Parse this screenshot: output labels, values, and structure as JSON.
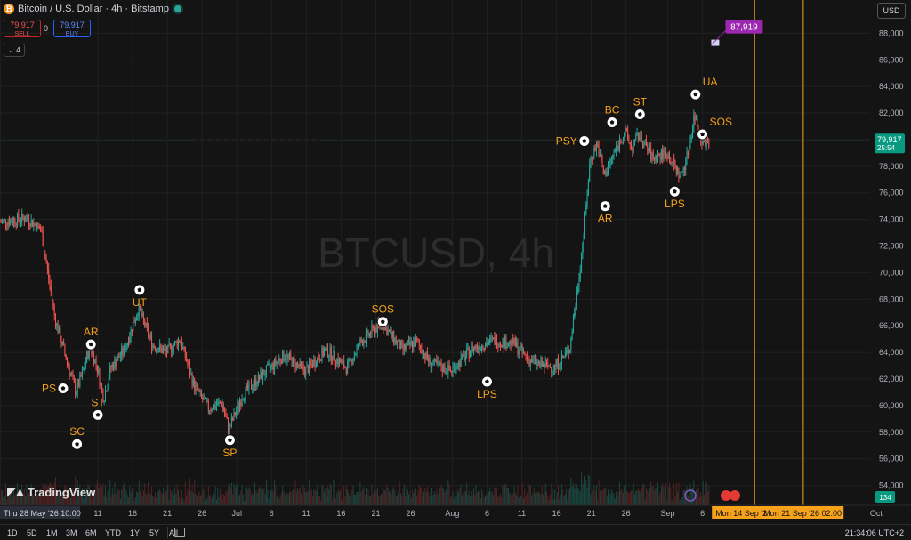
{
  "header": {
    "symbol_title": "Bitcoin / U.S. Dollar · 4h · Bitstamp",
    "sell_price": "79,917",
    "sell_label": "SELL",
    "spread": "0",
    "buy_price": "79,917",
    "buy_label": "BUY",
    "collapse_count": "4"
  },
  "currency_button": "USD",
  "watermark": "BTCUSD, 4h",
  "logo_text": "TradingView",
  "bottom_bar": {
    "ranges": [
      "1D",
      "5D",
      "1M",
      "3M",
      "6M",
      "YTD",
      "1Y",
      "5Y",
      "All"
    ],
    "clock": "21:34:06 UTC+2"
  },
  "colors": {
    "background": "#141414",
    "up": "#26a69a",
    "down": "#ef5350",
    "annotation": "#f7a21b",
    "current_price": "#089981",
    "target": "#9c27b0"
  },
  "chart_data": {
    "type": "candlestick",
    "symbol": "BTCUSD",
    "interval": "4h",
    "exchange": "Bitstamp",
    "y_axis": {
      "range": [
        52500,
        90500
      ],
      "ticks": [
        54000,
        56000,
        58000,
        60000,
        62000,
        64000,
        66000,
        68000,
        70000,
        72000,
        74000,
        76000,
        78000,
        80000,
        82000,
        84000,
        86000,
        88000
      ],
      "tick_labels": [
        "54,000",
        "56,000",
        "58,000",
        "60,000",
        "62,000",
        "64,000",
        "66,000",
        "68,000",
        "70,000",
        "72,000",
        "74,000",
        "76,000",
        "78,000",
        "80,000",
        "82,000",
        "84,000",
        "86,000",
        "88,000"
      ]
    },
    "x_axis": {
      "range": [
        "2026-05-28",
        "2026-10-01"
      ],
      "ticks": [
        {
          "date": "2026-05-28",
          "label": "Thu 28 May '26   10:00",
          "highlight": true
        },
        {
          "date": "2026-06-11",
          "label": "11"
        },
        {
          "date": "2026-06-16",
          "label": "16"
        },
        {
          "date": "2026-06-21",
          "label": "21"
        },
        {
          "date": "2026-06-26",
          "label": "26"
        },
        {
          "date": "2026-07-01",
          "label": "Jul"
        },
        {
          "date": "2026-07-06",
          "label": "6"
        },
        {
          "date": "2026-07-11",
          "label": "11"
        },
        {
          "date": "2026-07-16",
          "label": "16"
        },
        {
          "date": "2026-07-21",
          "label": "21"
        },
        {
          "date": "2026-07-26",
          "label": "26"
        },
        {
          "date": "2026-08-01",
          "label": "Aug"
        },
        {
          "date": "2026-08-06",
          "label": "6"
        },
        {
          "date": "2026-08-11",
          "label": "11"
        },
        {
          "date": "2026-08-16",
          "label": "16"
        },
        {
          "date": "2026-08-21",
          "label": "21"
        },
        {
          "date": "2026-08-26",
          "label": "26"
        },
        {
          "date": "2026-09-01",
          "label": "Sep"
        },
        {
          "date": "2026-09-06",
          "label": "6"
        },
        {
          "date": "2026-10-01",
          "label": "Oct"
        }
      ],
      "range_highlight": {
        "from": "2026-09-14",
        "to": "2026-09-21",
        "labels": [
          "Mon 14 Sep '2",
          "Mon 21 Sep '26   02:00"
        ]
      }
    },
    "price_path": [
      {
        "date": "2026-05-28",
        "price": 73800
      },
      {
        "date": "2026-06-01",
        "price": 74100
      },
      {
        "date": "2026-06-03",
        "price": 73200
      },
      {
        "date": "2026-06-05",
        "price": 66500
      },
      {
        "date": "2026-06-07",
        "price": 62800
      },
      {
        "date": "2026-06-08",
        "price": 61000
      },
      {
        "date": "2026-06-09",
        "price": 62500
      },
      {
        "date": "2026-06-10",
        "price": 64500
      },
      {
        "date": "2026-06-11",
        "price": 63000
      },
      {
        "date": "2026-06-12",
        "price": 60500
      },
      {
        "date": "2026-06-13",
        "price": 62800
      },
      {
        "date": "2026-06-15",
        "price": 64200
      },
      {
        "date": "2026-06-17",
        "price": 67300
      },
      {
        "date": "2026-06-19",
        "price": 64600
      },
      {
        "date": "2026-06-21",
        "price": 64000
      },
      {
        "date": "2026-06-23",
        "price": 65000
      },
      {
        "date": "2026-06-25",
        "price": 61500
      },
      {
        "date": "2026-06-27",
        "price": 59800
      },
      {
        "date": "2026-06-29",
        "price": 60200
      },
      {
        "date": "2026-06-30",
        "price": 58200
      },
      {
        "date": "2026-07-02",
        "price": 60800
      },
      {
        "date": "2026-07-05",
        "price": 62400
      },
      {
        "date": "2026-07-08",
        "price": 63800
      },
      {
        "date": "2026-07-11",
        "price": 62600
      },
      {
        "date": "2026-07-14",
        "price": 64200
      },
      {
        "date": "2026-07-17",
        "price": 62800
      },
      {
        "date": "2026-07-19",
        "price": 64800
      },
      {
        "date": "2026-07-22",
        "price": 66200
      },
      {
        "date": "2026-07-25",
        "price": 64200
      },
      {
        "date": "2026-07-27",
        "price": 64800
      },
      {
        "date": "2026-07-29",
        "price": 63200
      },
      {
        "date": "2026-08-01",
        "price": 62600
      },
      {
        "date": "2026-08-04",
        "price": 64300
      },
      {
        "date": "2026-08-07",
        "price": 64900
      },
      {
        "date": "2026-08-10",
        "price": 64700
      },
      {
        "date": "2026-08-12",
        "price": 63500
      },
      {
        "date": "2026-08-14",
        "price": 63000
      },
      {
        "date": "2026-08-16",
        "price": 62900
      },
      {
        "date": "2026-08-18",
        "price": 64200
      },
      {
        "date": "2026-08-19",
        "price": 68000
      },
      {
        "date": "2026-08-20",
        "price": 72500
      },
      {
        "date": "2026-08-21",
        "price": 78500
      },
      {
        "date": "2026-08-22",
        "price": 79700
      },
      {
        "date": "2026-08-23",
        "price": 77300
      },
      {
        "date": "2026-08-25",
        "price": 79600
      },
      {
        "date": "2026-08-26",
        "price": 80600
      },
      {
        "date": "2026-08-27",
        "price": 79300
      },
      {
        "date": "2026-08-28",
        "price": 80400
      },
      {
        "date": "2026-08-30",
        "price": 78600
      },
      {
        "date": "2026-09-01",
        "price": 79000
      },
      {
        "date": "2026-09-03",
        "price": 77200
      },
      {
        "date": "2026-09-04",
        "price": 78800
      },
      {
        "date": "2026-09-05",
        "price": 81900
      },
      {
        "date": "2026-09-06",
        "price": 80100
      },
      {
        "date": "2026-09-07",
        "price": 79900
      }
    ],
    "annotations": [
      {
        "label": "PS",
        "date": "2026-06-06",
        "price": 61300,
        "label_side": "left"
      },
      {
        "label": "SC",
        "date": "2026-06-08",
        "price": 57100,
        "label_side": "above"
      },
      {
        "label": "AR",
        "date": "2026-06-10",
        "price": 64600,
        "label_side": "above"
      },
      {
        "label": "ST",
        "date": "2026-06-11",
        "price": 59300,
        "label_side": "above"
      },
      {
        "label": "UT",
        "date": "2026-06-17",
        "price": 68700,
        "label_side": "below"
      },
      {
        "label": "SP",
        "date": "2026-06-30",
        "price": 57400,
        "label_side": "below"
      },
      {
        "label": "SOS",
        "date": "2026-07-22",
        "price": 66300,
        "label_side": "above"
      },
      {
        "label": "LPS",
        "date": "2026-08-06",
        "price": 61800,
        "label_side": "below"
      },
      {
        "label": "PSY",
        "date": "2026-08-20",
        "price": 79900,
        "label_side": "left"
      },
      {
        "label": "AR",
        "date": "2026-08-23",
        "price": 75000,
        "label_side": "below"
      },
      {
        "label": "BC",
        "date": "2026-08-24",
        "price": 81300,
        "label_side": "above"
      },
      {
        "label": "ST",
        "date": "2026-08-28",
        "price": 81900,
        "label_side": "above"
      },
      {
        "label": "LPS",
        "date": "2026-09-02",
        "price": 76100,
        "label_side": "below"
      },
      {
        "label": "UA",
        "date": "2026-09-05",
        "price": 83400,
        "label_side": "above-right"
      },
      {
        "label": "SOS",
        "date": "2026-09-06",
        "price": 80400,
        "label_side": "above-right"
      }
    ],
    "current_price": {
      "value": 79917,
      "label": "79,917",
      "countdown": "25:54"
    },
    "target_marker": {
      "value": 87919,
      "label": "87,919",
      "date": "2026-09-07"
    },
    "vertical_lines": [
      "2026-09-14",
      "2026-09-21"
    ],
    "volume_badge": "134"
  }
}
